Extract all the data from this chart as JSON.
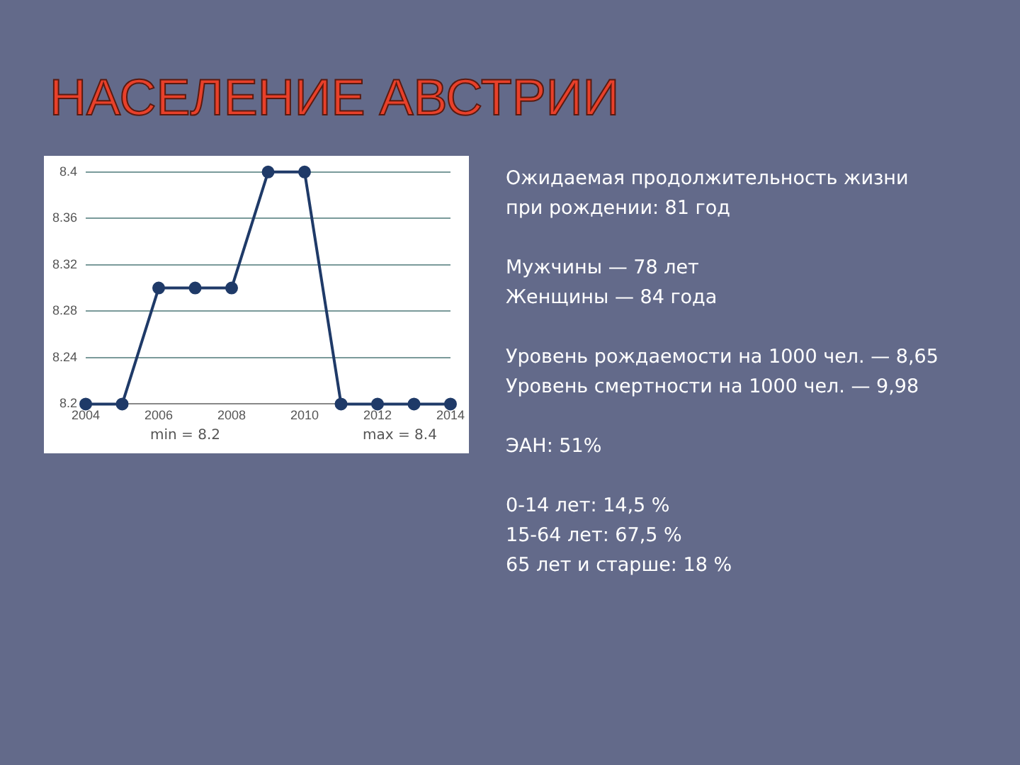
{
  "chart_data": [
    {
      "type": "line",
      "title": "НАСЕЛЕНИЕ АВСТРИИ",
      "x": [
        2004,
        2005,
        2006,
        2007,
        2008,
        2009,
        2010,
        2011,
        2012,
        2013,
        2014
      ],
      "series": [
        {
          "color": "#1f3a68",
          "values": [
            8.2,
            8.2,
            8.3,
            8.3,
            8.3,
            8.4,
            8.4,
            8.2,
            8.2,
            8.2,
            8.2
          ]
        }
      ],
      "xlim": [
        2004,
        2014
      ],
      "xticks": [
        2004,
        2006,
        2008,
        2010,
        2012,
        2014
      ],
      "ylim": [
        8.2,
        8.4
      ],
      "yticks": [
        8.2,
        8.24,
        8.28,
        8.32,
        8.36,
        8.4
      ],
      "grid": "y",
      "marker": "circle",
      "legend": false,
      "annotations": [
        "min = 8.2",
        "max = 8.4"
      ]
    },
    {
      "type": "other",
      "annotations": [
        "Ожидаемая продолжительность жизни\nпри рождении: 81 год",
        "Мужчины — 78 лет\nЖенщины — 84 года",
        "Уровень рождаемости на 1000 чел. — 8,65\nУровень смертности на 1000 чел. — 9,98",
        "ЭАН: 51%",
        "0-14 лет: 14,5 %\n15-64 лет: 67,5 %\n65 лет и старше: 18 %"
      ]
    }
  ]
}
